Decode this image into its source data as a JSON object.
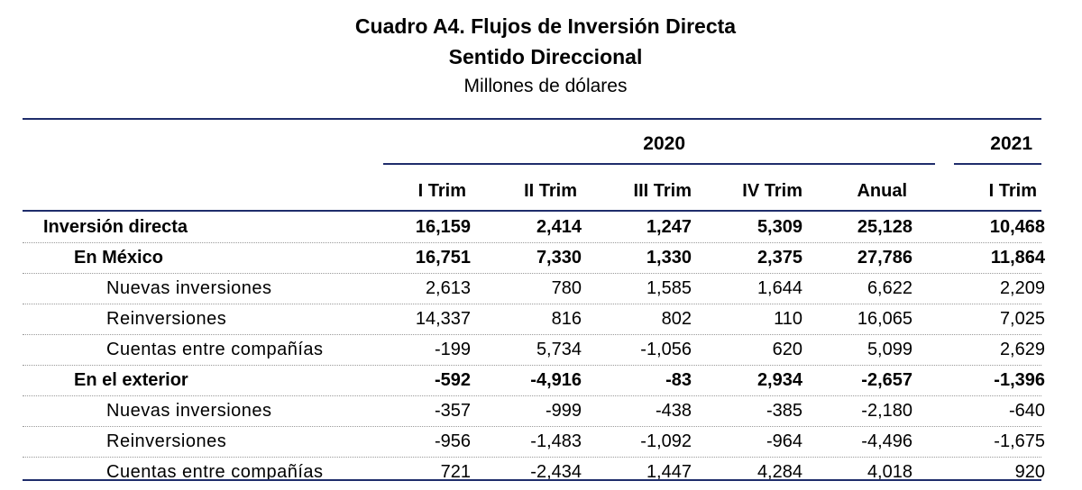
{
  "title": {
    "line1": "Cuadro A4. Flujos de Inversión Directa",
    "line2": "Sentido Direccional",
    "line3": "Millones de dólares"
  },
  "header": {
    "year_2020": "2020",
    "year_2021": "2021",
    "columns": [
      "I Trim",
      "II Trim",
      "III Trim",
      "IV Trim",
      "Anual",
      "I Trim"
    ]
  },
  "rows": [
    {
      "label": "Inversión directa",
      "bold": true,
      "level": 0,
      "values": [
        "16,159",
        "2,414",
        "1,247",
        "5,309",
        "25,128",
        "10,468"
      ]
    },
    {
      "label": "En México",
      "bold": true,
      "level": 1,
      "values": [
        "16,751",
        "7,330",
        "1,330",
        "2,375",
        "27,786",
        "11,864"
      ]
    },
    {
      "label": "Nuevas inversiones",
      "bold": false,
      "level": 2,
      "values": [
        "2,613",
        "780",
        "1,585",
        "1,644",
        "6,622",
        "2,209"
      ]
    },
    {
      "label": "Reinversiones",
      "bold": false,
      "level": 2,
      "values": [
        "14,337",
        "816",
        "802",
        "110",
        "16,065",
        "7,025"
      ]
    },
    {
      "label": "Cuentas entre compañías",
      "bold": false,
      "level": 2,
      "values": [
        "-199",
        "5,734",
        "-1,056",
        "620",
        "5,099",
        "2,629"
      ]
    },
    {
      "label": "En el exterior",
      "bold": true,
      "level": 1,
      "values": [
        "-592",
        "-4,916",
        "-83",
        "2,934",
        "-2,657",
        "-1,396"
      ]
    },
    {
      "label": "Nuevas inversiones",
      "bold": false,
      "level": 2,
      "values": [
        "-357",
        "-999",
        "-438",
        "-385",
        "-2,180",
        "-640"
      ]
    },
    {
      "label": "Reinversiones",
      "bold": false,
      "level": 2,
      "values": [
        "-956",
        "-1,483",
        "-1,092",
        "-964",
        "-4,496",
        "-1,675"
      ]
    },
    {
      "label": "Cuentas entre compañías",
      "bold": false,
      "level": 2,
      "values": [
        "721",
        "-2,434",
        "1,447",
        "4,284",
        "4,018",
        "920"
      ]
    }
  ]
}
